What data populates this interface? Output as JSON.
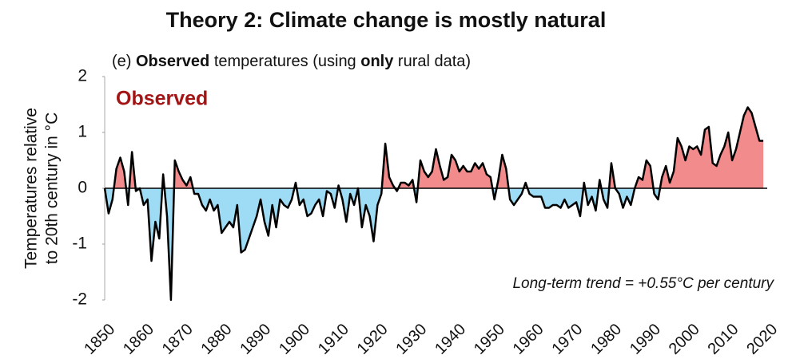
{
  "chart_data": {
    "type": "line",
    "title": "Theory 2: Climate change is mostly natural",
    "subtitle_parts": [
      {
        "text": "(e) ",
        "bold": false
      },
      {
        "text": "Observed",
        "bold": true
      },
      {
        "text": " temperatures (using ",
        "bold": false
      },
      {
        "text": "only",
        "bold": true
      },
      {
        "text": " rural data)",
        "bold": false
      }
    ],
    "y_label": [
      "Temperatures relative",
      "to 20th century in °C"
    ],
    "series_label": "Observed",
    "series_label_color": "#a31515",
    "annotation": "Long-term trend = +0.55°C per century",
    "line_color": "#000000",
    "positive_color": "#f28b8b",
    "negative_color": "#9edcf6",
    "x": [
      1850,
      1851,
      1852,
      1853,
      1854,
      1855,
      1856,
      1857,
      1858,
      1859,
      1860,
      1861,
      1862,
      1863,
      1864,
      1865,
      1866,
      1867,
      1868,
      1869,
      1870,
      1871,
      1872,
      1873,
      1874,
      1875,
      1876,
      1877,
      1878,
      1879,
      1880,
      1881,
      1882,
      1883,
      1884,
      1885,
      1886,
      1887,
      1888,
      1889,
      1890,
      1891,
      1892,
      1893,
      1894,
      1895,
      1896,
      1897,
      1898,
      1899,
      1900,
      1901,
      1902,
      1903,
      1904,
      1905,
      1906,
      1907,
      1908,
      1909,
      1910,
      1911,
      1912,
      1913,
      1914,
      1915,
      1916,
      1917,
      1918,
      1919,
      1920,
      1921,
      1922,
      1923,
      1924,
      1925,
      1926,
      1927,
      1928,
      1929,
      1930,
      1931,
      1932,
      1933,
      1934,
      1935,
      1936,
      1937,
      1938,
      1939,
      1940,
      1941,
      1942,
      1943,
      1944,
      1945,
      1946,
      1947,
      1948,
      1949,
      1950,
      1951,
      1952,
      1953,
      1954,
      1955,
      1956,
      1957,
      1958,
      1959,
      1960,
      1961,
      1962,
      1963,
      1964,
      1965,
      1966,
      1967,
      1968,
      1969,
      1970,
      1971,
      1972,
      1973,
      1974,
      1975,
      1976,
      1977,
      1978,
      1979,
      1980,
      1981,
      1982,
      1983,
      1984,
      1985,
      1986,
      1987,
      1988,
      1989,
      1990,
      1991,
      1992,
      1993,
      1994,
      1995,
      1996,
      1997,
      1998,
      1999,
      2000,
      2001,
      2002,
      2003,
      2004,
      2005,
      2006,
      2007,
      2008,
      2009,
      2010,
      2011,
      2012,
      2013,
      2014,
      2015,
      2016,
      2017,
      2018,
      2019
    ],
    "values": [
      0,
      -0.45,
      -0.2,
      0.35,
      0.55,
      0.3,
      -0.3,
      0.65,
      -0.05,
      0.0,
      -0.3,
      -0.2,
      -1.3,
      -0.6,
      -0.9,
      0.25,
      -0.5,
      -2.0,
      0.5,
      0.3,
      0.15,
      0.05,
      0.2,
      -0.1,
      -0.1,
      -0.3,
      -0.4,
      -0.2,
      -0.4,
      -0.3,
      -0.8,
      -0.7,
      -0.6,
      -0.7,
      -0.3,
      -1.15,
      -1.1,
      -0.9,
      -0.7,
      -0.5,
      -0.2,
      -0.6,
      -0.85,
      -0.3,
      -0.7,
      -0.2,
      -0.3,
      -0.35,
      -0.2,
      0.1,
      -0.3,
      -0.2,
      -0.5,
      -0.45,
      -0.3,
      -0.2,
      -0.5,
      -0.05,
      -0.1,
      -0.35,
      0.05,
      -0.2,
      -0.6,
      -0.1,
      -0.3,
      0.0,
      -0.7,
      -0.3,
      -0.5,
      -0.95,
      -0.3,
      -0.1,
      0.8,
      0.2,
      0.05,
      -0.05,
      0.1,
      0.1,
      0.05,
      0.15,
      -0.25,
      0.5,
      0.3,
      0.2,
      0.3,
      0.7,
      0.4,
      0.15,
      0.2,
      0.6,
      0.5,
      0.3,
      0.4,
      0.3,
      0.3,
      0.45,
      0.35,
      0.45,
      0.25,
      0.2,
      -0.2,
      0.15,
      0.6,
      0.35,
      -0.2,
      -0.3,
      -0.2,
      -0.1,
      0.1,
      -0.1,
      -0.15,
      -0.15,
      -0.15,
      -0.35,
      -0.35,
      -0.3,
      -0.3,
      -0.35,
      -0.2,
      -0.35,
      -0.3,
      -0.25,
      -0.5,
      0.1,
      -0.3,
      -0.15,
      -0.4,
      0.15,
      -0.2,
      -0.35,
      0.45,
      0.0,
      -0.1,
      -0.35,
      -0.15,
      -0.3,
      0.0,
      0.2,
      0.15,
      0.5,
      0.4,
      -0.1,
      -0.2,
      0.2,
      0.4,
      0.1,
      0.3,
      0.9,
      0.75,
      0.5,
      0.75,
      0.7,
      0.75,
      0.6,
      1.05,
      1.1,
      0.45,
      0.4,
      0.6,
      0.75,
      1.0,
      0.5,
      0.7,
      1.0,
      1.3,
      1.45,
      1.35,
      1.1,
      0.85,
      0.85
    ],
    "xlim": [
      1850,
      2020
    ],
    "xticks": [
      1850,
      1860,
      1870,
      1880,
      1890,
      1900,
      1910,
      1920,
      1930,
      1940,
      1950,
      1960,
      1970,
      1980,
      1990,
      2000,
      2010,
      2020
    ],
    "ylim": [
      -2,
      2
    ],
    "yticks": [
      -2,
      -1,
      0,
      1,
      2
    ]
  }
}
